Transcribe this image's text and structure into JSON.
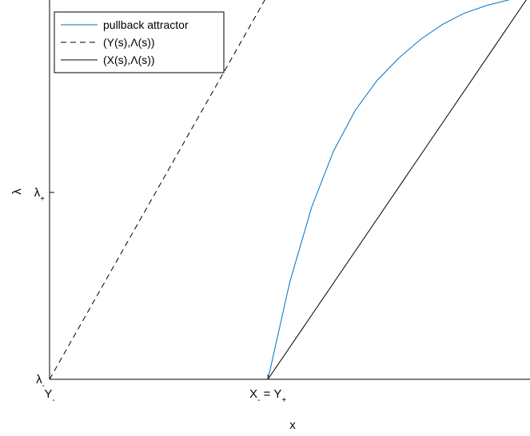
{
  "chart_data": {
    "type": "line",
    "xlabel": "x",
    "ylabel": "λ",
    "x_ticks": [
      {
        "base": "Y",
        "sub": "-",
        "value": 0
      },
      {
        "base": "X",
        "sub": "-",
        "mid": " = Y",
        "sub2": "+",
        "value": 0.5
      }
    ],
    "y_ticks": [
      {
        "base": "λ",
        "sub": "-",
        "value": 0
      },
      {
        "base": "λ",
        "sub": "+",
        "value": 0.5
      }
    ],
    "xlim": [
      0,
      1.1
    ],
    "ylim": [
      0,
      1.0
    ],
    "grid": false,
    "legend_position": "top-left",
    "series": [
      {
        "name": "pullback attractor",
        "color": "#0072BD",
        "style": "solid",
        "x": [
          0.5,
          0.55,
          0.6,
          0.65,
          0.7,
          0.75,
          0.8,
          0.85,
          0.9,
          0.95,
          1.0,
          1.05,
          1.1
        ],
        "y": [
          0.0,
          0.26,
          0.46,
          0.61,
          0.72,
          0.8,
          0.86,
          0.91,
          0.95,
          0.98,
          1.0,
          1.015,
          1.025
        ]
      },
      {
        "name": "(Y(s),Λ(s))",
        "color": "#000000",
        "style": "dashed",
        "x": [
          0.0,
          0.5
        ],
        "y": [
          0.0,
          1.03
        ]
      },
      {
        "name": "(X(s),Λ(s))",
        "color": "#000000",
        "style": "solid",
        "x": [
          0.5,
          1.1
        ],
        "y": [
          0.0,
          1.03
        ]
      }
    ]
  }
}
